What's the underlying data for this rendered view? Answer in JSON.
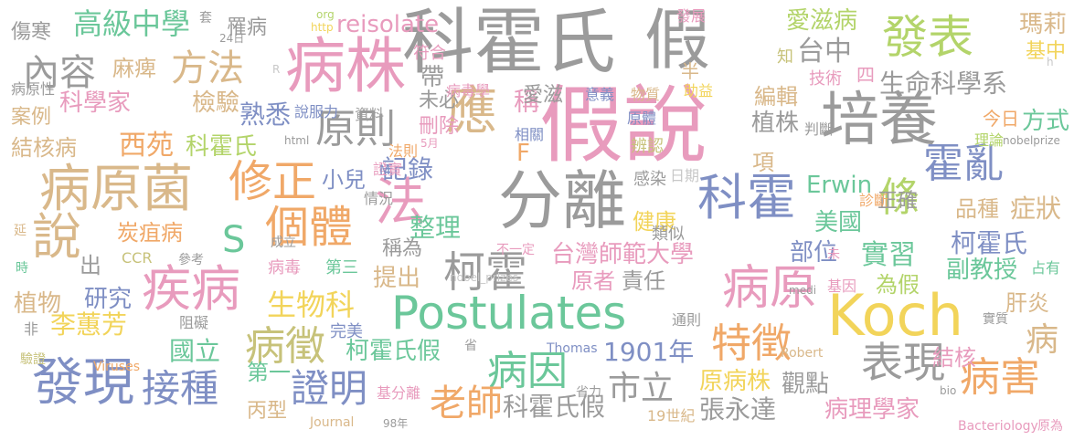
{
  "palette": {
    "gray": "#9b9b9b",
    "blue": "#7f8fc4",
    "green": "#6bc79a",
    "pink": "#e89bbd",
    "tan": "#d9b88a",
    "yellow": "#f2d45a",
    "lime": "#b3d46a",
    "olive": "#c7c27a",
    "orange": "#f0a868",
    "lightgray": "#c8c8c8"
  },
  "words": [
    {
      "text": "假說",
      "color": "pink"
    },
    {
      "text": "科霍氏",
      "color": "gray"
    },
    {
      "text": "假",
      "color": "gray"
    },
    {
      "text": "分離",
      "color": "gray"
    },
    {
      "text": "病株",
      "color": "pink"
    },
    {
      "text": "Koch",
      "color": "yellow"
    },
    {
      "text": "培養",
      "color": "gray"
    },
    {
      "text": "病原菌",
      "color": "tan"
    },
    {
      "text": "Postulates",
      "color": "green"
    },
    {
      "text": "疾病",
      "color": "pink"
    },
    {
      "text": "科霍",
      "color": "blue"
    },
    {
      "text": "發現",
      "color": "blue"
    },
    {
      "text": "病原",
      "color": "pink"
    },
    {
      "text": "表現",
      "color": "gray"
    },
    {
      "text": "發表",
      "color": "lime"
    },
    {
      "text": "應",
      "color": "tan"
    },
    {
      "text": "法",
      "color": "pink"
    },
    {
      "text": "說",
      "color": "tan"
    },
    {
      "text": "修正",
      "color": "orange"
    },
    {
      "text": "個體",
      "color": "orange"
    },
    {
      "text": "原則",
      "color": "gray"
    },
    {
      "text": "接種",
      "color": "blue"
    },
    {
      "text": "證明",
      "color": "blue"
    },
    {
      "text": "柯霍",
      "color": "gray"
    },
    {
      "text": "病因",
      "color": "green"
    },
    {
      "text": "特徵",
      "color": "orange"
    },
    {
      "text": "病徵",
      "color": "olive"
    },
    {
      "text": "病害",
      "color": "orange"
    },
    {
      "text": "條",
      "color": "lime"
    },
    {
      "text": "霍亂",
      "color": "blue"
    },
    {
      "text": "內容",
      "color": "gray"
    },
    {
      "text": "方法",
      "color": "tan"
    },
    {
      "text": "高級中學",
      "color": "green"
    },
    {
      "text": "傷寒",
      "color": "gray"
    },
    {
      "text": "罹病",
      "color": "gray"
    },
    {
      "text": "reisolate",
      "color": "pink"
    },
    {
      "text": "愛滋病",
      "color": "lime"
    },
    {
      "text": "瑪莉",
      "color": "tan"
    },
    {
      "text": "基中",
      "color": "yellow"
    },
    {
      "text": "台中",
      "color": "gray"
    },
    {
      "text": "生命科學系",
      "color": "gray"
    },
    {
      "text": "麻痺",
      "color": "tan"
    },
    {
      "text": "科學家",
      "color": "pink"
    },
    {
      "text": "檢驗",
      "color": "tan"
    },
    {
      "text": "熟悉",
      "color": "blue"
    },
    {
      "text": "案例",
      "color": "tan"
    },
    {
      "text": "結核病",
      "color": "tan"
    },
    {
      "text": "西苑",
      "color": "orange"
    },
    {
      "text": "科霍氏",
      "color": "lime"
    },
    {
      "text": "編輯",
      "color": "tan"
    },
    {
      "text": "植株",
      "color": "gray"
    },
    {
      "text": "方式",
      "color": "green"
    },
    {
      "text": "今日",
      "color": "orange"
    },
    {
      "text": "柯霍氏",
      "color": "blue"
    },
    {
      "text": "炭疽病",
      "color": "orange"
    },
    {
      "text": "小兒",
      "color": "blue"
    },
    {
      "text": "記錄",
      "color": "blue"
    },
    {
      "text": "整理",
      "color": "green"
    },
    {
      "text": "稱為",
      "color": "gray"
    },
    {
      "text": "台灣師範大學",
      "color": "pink"
    },
    {
      "text": "實習",
      "color": "green"
    },
    {
      "text": "副教授",
      "color": "green"
    },
    {
      "text": "部位",
      "color": "blue"
    },
    {
      "text": "美國",
      "color": "green"
    },
    {
      "text": "品種",
      "color": "tan"
    },
    {
      "text": "症狀",
      "color": "tan"
    },
    {
      "text": "Erwin",
      "color": "green"
    },
    {
      "text": "健康",
      "color": "yellow"
    },
    {
      "text": "S",
      "color": "green"
    },
    {
      "text": "生物科",
      "color": "yellow"
    },
    {
      "text": "研究",
      "color": "blue"
    },
    {
      "text": "植物",
      "color": "tan"
    },
    {
      "text": "李蕙芳",
      "color": "yellow"
    },
    {
      "text": "國立",
      "color": "green"
    },
    {
      "text": "第一",
      "color": "green"
    },
    {
      "text": "1901年",
      "color": "blue"
    },
    {
      "text": "柯霍氏假",
      "color": "green"
    },
    {
      "text": "市立",
      "color": "gray"
    },
    {
      "text": "原病株",
      "color": "yellow"
    },
    {
      "text": "觀點",
      "color": "gray"
    },
    {
      "text": "老師",
      "color": "orange"
    },
    {
      "text": "科霍氏假",
      "color": "gray"
    },
    {
      "text": "張永達",
      "color": "gray"
    },
    {
      "text": "病理學家",
      "color": "pink"
    },
    {
      "text": "丙型",
      "color": "tan"
    },
    {
      "text": "提出",
      "color": "tan"
    },
    {
      "text": "原者",
      "color": "pink"
    },
    {
      "text": "責任",
      "color": "gray"
    },
    {
      "text": "為假",
      "color": "lime"
    },
    {
      "text": "肝炎",
      "color": "tan"
    },
    {
      "text": "結核",
      "color": "pink"
    },
    {
      "text": "病",
      "color": "tan"
    },
    {
      "text": "出",
      "color": "gray"
    },
    {
      "text": "帶",
      "color": "gray"
    },
    {
      "text": "稱",
      "color": "pink"
    },
    {
      "text": "F",
      "color": "orange"
    },
    {
      "text": "項",
      "color": "tan"
    },
    {
      "text": "正確",
      "color": "gray"
    },
    {
      "text": "刪除",
      "color": "pink"
    },
    {
      "text": "未必",
      "color": "gray"
    },
    {
      "text": "愛滋",
      "color": "gray"
    },
    {
      "text": "病毒學",
      "color": "pink"
    },
    {
      "text": "意義",
      "color": "blue"
    },
    {
      "text": "物質",
      "color": "tan"
    },
    {
      "text": "助益",
      "color": "yellow"
    },
    {
      "text": "技術",
      "color": "pink"
    },
    {
      "text": "四",
      "color": "pink"
    },
    {
      "text": "原體",
      "color": "blue"
    },
    {
      "text": "相關",
      "color": "blue"
    },
    {
      "text": "辨認",
      "color": "olive"
    },
    {
      "text": "感染",
      "color": "gray"
    },
    {
      "text": "類似",
      "color": "gray"
    },
    {
      "text": "診斷",
      "color": "orange"
    },
    {
      "text": "判斷",
      "color": "gray"
    },
    {
      "text": "理論",
      "color": "lime"
    },
    {
      "text": "半",
      "color": "tan"
    },
    {
      "text": "發展",
      "color": "pink"
    },
    {
      "text": "知",
      "color": "olive"
    },
    {
      "text": "符合",
      "color": "pink"
    },
    {
      "text": "病原性",
      "color": "gray"
    },
    {
      "text": "說服力",
      "color": "blue"
    },
    {
      "text": "資料",
      "color": "gray"
    },
    {
      "text": "情況",
      "color": "gray"
    },
    {
      "text": "證實",
      "color": "pink"
    },
    {
      "text": "法則",
      "color": "orange"
    },
    {
      "text": "日期",
      "color": "lightgray"
    },
    {
      "text": "成立",
      "color": "gray"
    },
    {
      "text": "不一定",
      "color": "pink"
    },
    {
      "text": "參考",
      "color": "gray"
    },
    {
      "text": "CCR",
      "color": "olive"
    },
    {
      "text": "病毒",
      "color": "pink"
    },
    {
      "text": "第三",
      "color": "green"
    },
    {
      "text": "完美",
      "color": "blue"
    },
    {
      "text": "通則",
      "color": "gray"
    },
    {
      "text": "阻礙",
      "color": "gray"
    },
    {
      "text": "省",
      "color": "gray"
    },
    {
      "text": "基分離",
      "color": "pink"
    },
    {
      "text": "省力",
      "color": "gray"
    },
    {
      "text": "19世紀",
      "color": "tan"
    },
    {
      "text": "Thomas",
      "color": "blue"
    },
    {
      "text": "Viruses",
      "color": "orange"
    },
    {
      "text": "Journal",
      "color": "tan"
    },
    {
      "text": "Robert",
      "color": "tan"
    },
    {
      "text": "Bacteriology",
      "color": "pink"
    },
    {
      "text": "原為",
      "color": "pink"
    },
    {
      "text": "實質",
      "color": "gray"
    },
    {
      "text": "基因",
      "color": "pink"
    },
    {
      "text": "占有",
      "color": "green"
    },
    {
      "text": "非",
      "color": "gray"
    },
    {
      "text": "延",
      "color": "tan"
    },
    {
      "text": "時",
      "color": "green"
    },
    {
      "text": "驗證",
      "color": "olive"
    },
    {
      "text": "套",
      "color": "gray"
    },
    {
      "text": "24日",
      "color": "gray"
    },
    {
      "text": "org",
      "color": "lime"
    },
    {
      "text": "http",
      "color": "yellow"
    },
    {
      "text": "R",
      "color": "lightgray"
    },
    {
      "text": "html",
      "color": "gray"
    },
    {
      "text": "5月",
      "color": "pink"
    },
    {
      "text": "M",
      "color": "blue"
    },
    {
      "text": "nobelprize",
      "color": "gray"
    },
    {
      "text": "nobel_prizes",
      "color": "lightgray"
    },
    {
      "text": "medi",
      "color": "gray"
    },
    {
      "text": "未",
      "color": "pink"
    },
    {
      "text": "bio",
      "color": "gray"
    },
    {
      "text": "98年",
      "color": "gray"
    },
    {
      "text": "h",
      "color": "lightgray"
    }
  ]
}
